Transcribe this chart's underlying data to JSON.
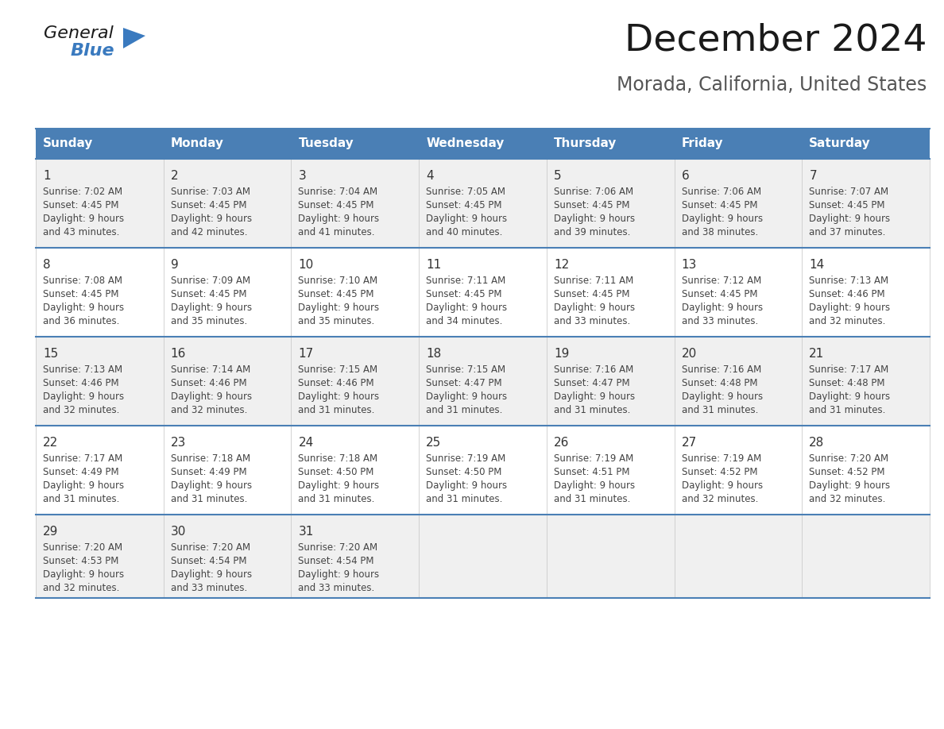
{
  "title": "December 2024",
  "subtitle": "Morada, California, United States",
  "header_bg": "#4a7fb5",
  "header_text": "#ffffff",
  "row_bg_odd": "#f0f0f0",
  "row_bg_even": "#ffffff",
  "separator_color": "#4a7fb5",
  "day_headers": [
    "Sunday",
    "Monday",
    "Tuesday",
    "Wednesday",
    "Thursday",
    "Friday",
    "Saturday"
  ],
  "days": [
    {
      "day": 1,
      "col": 0,
      "row": 0,
      "sunrise": "7:02 AM",
      "sunset": "4:45 PM",
      "daylight_h": "9 hours",
      "daylight_m": "and 43 minutes."
    },
    {
      "day": 2,
      "col": 1,
      "row": 0,
      "sunrise": "7:03 AM",
      "sunset": "4:45 PM",
      "daylight_h": "9 hours",
      "daylight_m": "and 42 minutes."
    },
    {
      "day": 3,
      "col": 2,
      "row": 0,
      "sunrise": "7:04 AM",
      "sunset": "4:45 PM",
      "daylight_h": "9 hours",
      "daylight_m": "and 41 minutes."
    },
    {
      "day": 4,
      "col": 3,
      "row": 0,
      "sunrise": "7:05 AM",
      "sunset": "4:45 PM",
      "daylight_h": "9 hours",
      "daylight_m": "and 40 minutes."
    },
    {
      "day": 5,
      "col": 4,
      "row": 0,
      "sunrise": "7:06 AM",
      "sunset": "4:45 PM",
      "daylight_h": "9 hours",
      "daylight_m": "and 39 minutes."
    },
    {
      "day": 6,
      "col": 5,
      "row": 0,
      "sunrise": "7:06 AM",
      "sunset": "4:45 PM",
      "daylight_h": "9 hours",
      "daylight_m": "and 38 minutes."
    },
    {
      "day": 7,
      "col": 6,
      "row": 0,
      "sunrise": "7:07 AM",
      "sunset": "4:45 PM",
      "daylight_h": "9 hours",
      "daylight_m": "and 37 minutes."
    },
    {
      "day": 8,
      "col": 0,
      "row": 1,
      "sunrise": "7:08 AM",
      "sunset": "4:45 PM",
      "daylight_h": "9 hours",
      "daylight_m": "and 36 minutes."
    },
    {
      "day": 9,
      "col": 1,
      "row": 1,
      "sunrise": "7:09 AM",
      "sunset": "4:45 PM",
      "daylight_h": "9 hours",
      "daylight_m": "and 35 minutes."
    },
    {
      "day": 10,
      "col": 2,
      "row": 1,
      "sunrise": "7:10 AM",
      "sunset": "4:45 PM",
      "daylight_h": "9 hours",
      "daylight_m": "and 35 minutes."
    },
    {
      "day": 11,
      "col": 3,
      "row": 1,
      "sunrise": "7:11 AM",
      "sunset": "4:45 PM",
      "daylight_h": "9 hours",
      "daylight_m": "and 34 minutes."
    },
    {
      "day": 12,
      "col": 4,
      "row": 1,
      "sunrise": "7:11 AM",
      "sunset": "4:45 PM",
      "daylight_h": "9 hours",
      "daylight_m": "and 33 minutes."
    },
    {
      "day": 13,
      "col": 5,
      "row": 1,
      "sunrise": "7:12 AM",
      "sunset": "4:45 PM",
      "daylight_h": "9 hours",
      "daylight_m": "and 33 minutes."
    },
    {
      "day": 14,
      "col": 6,
      "row": 1,
      "sunrise": "7:13 AM",
      "sunset": "4:46 PM",
      "daylight_h": "9 hours",
      "daylight_m": "and 32 minutes."
    },
    {
      "day": 15,
      "col": 0,
      "row": 2,
      "sunrise": "7:13 AM",
      "sunset": "4:46 PM",
      "daylight_h": "9 hours",
      "daylight_m": "and 32 minutes."
    },
    {
      "day": 16,
      "col": 1,
      "row": 2,
      "sunrise": "7:14 AM",
      "sunset": "4:46 PM",
      "daylight_h": "9 hours",
      "daylight_m": "and 32 minutes."
    },
    {
      "day": 17,
      "col": 2,
      "row": 2,
      "sunrise": "7:15 AM",
      "sunset": "4:46 PM",
      "daylight_h": "9 hours",
      "daylight_m": "and 31 minutes."
    },
    {
      "day": 18,
      "col": 3,
      "row": 2,
      "sunrise": "7:15 AM",
      "sunset": "4:47 PM",
      "daylight_h": "9 hours",
      "daylight_m": "and 31 minutes."
    },
    {
      "day": 19,
      "col": 4,
      "row": 2,
      "sunrise": "7:16 AM",
      "sunset": "4:47 PM",
      "daylight_h": "9 hours",
      "daylight_m": "and 31 minutes."
    },
    {
      "day": 20,
      "col": 5,
      "row": 2,
      "sunrise": "7:16 AM",
      "sunset": "4:48 PM",
      "daylight_h": "9 hours",
      "daylight_m": "and 31 minutes."
    },
    {
      "day": 21,
      "col": 6,
      "row": 2,
      "sunrise": "7:17 AM",
      "sunset": "4:48 PM",
      "daylight_h": "9 hours",
      "daylight_m": "and 31 minutes."
    },
    {
      "day": 22,
      "col": 0,
      "row": 3,
      "sunrise": "7:17 AM",
      "sunset": "4:49 PM",
      "daylight_h": "9 hours",
      "daylight_m": "and 31 minutes."
    },
    {
      "day": 23,
      "col": 1,
      "row": 3,
      "sunrise": "7:18 AM",
      "sunset": "4:49 PM",
      "daylight_h": "9 hours",
      "daylight_m": "and 31 minutes."
    },
    {
      "day": 24,
      "col": 2,
      "row": 3,
      "sunrise": "7:18 AM",
      "sunset": "4:50 PM",
      "daylight_h": "9 hours",
      "daylight_m": "and 31 minutes."
    },
    {
      "day": 25,
      "col": 3,
      "row": 3,
      "sunrise": "7:19 AM",
      "sunset": "4:50 PM",
      "daylight_h": "9 hours",
      "daylight_m": "and 31 minutes."
    },
    {
      "day": 26,
      "col": 4,
      "row": 3,
      "sunrise": "7:19 AM",
      "sunset": "4:51 PM",
      "daylight_h": "9 hours",
      "daylight_m": "and 31 minutes."
    },
    {
      "day": 27,
      "col": 5,
      "row": 3,
      "sunrise": "7:19 AM",
      "sunset": "4:52 PM",
      "daylight_h": "9 hours",
      "daylight_m": "and 32 minutes."
    },
    {
      "day": 28,
      "col": 6,
      "row": 3,
      "sunrise": "7:20 AM",
      "sunset": "4:52 PM",
      "daylight_h": "9 hours",
      "daylight_m": "and 32 minutes."
    },
    {
      "day": 29,
      "col": 0,
      "row": 4,
      "sunrise": "7:20 AM",
      "sunset": "4:53 PM",
      "daylight_h": "9 hours",
      "daylight_m": "and 32 minutes."
    },
    {
      "day": 30,
      "col": 1,
      "row": 4,
      "sunrise": "7:20 AM",
      "sunset": "4:54 PM",
      "daylight_h": "9 hours",
      "daylight_m": "and 33 minutes."
    },
    {
      "day": 31,
      "col": 2,
      "row": 4,
      "sunrise": "7:20 AM",
      "sunset": "4:54 PM",
      "daylight_h": "9 hours",
      "daylight_m": "and 33 minutes."
    }
  ],
  "num_rows": 5,
  "num_cols": 7,
  "logo_color_general": "#1a1a1a",
  "logo_color_blue": "#3a7abf",
  "title_color": "#1a1a1a",
  "subtitle_color": "#555555",
  "figwidth": 11.88,
  "figheight": 9.18,
  "dpi": 100
}
